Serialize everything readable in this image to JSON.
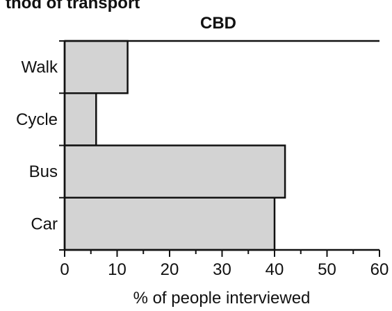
{
  "header": {
    "partial_title": "thod of transport"
  },
  "chart_data": {
    "type": "bar",
    "orientation": "horizontal",
    "title": "CBD",
    "xlabel": "% of people interviewed",
    "ylabel": "",
    "categories": [
      "Walk",
      "Cycle",
      "Bus",
      "Car"
    ],
    "values": [
      12,
      6,
      42,
      40
    ],
    "xlim": [
      0,
      60
    ],
    "xticks": [
      "0",
      "10",
      "20",
      "30",
      "40",
      "50",
      "60"
    ],
    "grid": false,
    "bar_color": "#d3d3d3",
    "edge_color": "#111111"
  }
}
